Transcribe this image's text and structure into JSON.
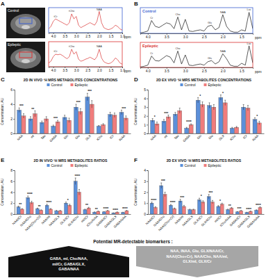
{
  "figure": {
    "panel_labels": [
      "A",
      "B",
      "C",
      "D",
      "E",
      "F"
    ],
    "mri_labels": [
      "Control",
      "Epileptic"
    ],
    "biomarkers": {
      "title": "Potential MR-detectable biomarkers :",
      "increased": [
        "GABA, mI, Cho/NAA,",
        "mI/Cr, GABA/GLX,",
        "GABA/NAA"
      ],
      "decreased": [
        "NAA, INAA, Glu, GLX/NAA/Cr,",
        "NAA/(Cho+Cr), NAA/Cho, NAA/mI,",
        "GLX/mI, GLX/Cr"
      ]
    }
  },
  "chart_data": [
    {
      "type": "line",
      "tick_labels": "x",
      "x_label": "ppm",
      "xlim": [
        4.2,
        1.0
      ],
      "ylim": [
        0,
        1
      ],
      "xticks": [
        {
          "value": 4,
          "label": "4.0"
        },
        3.5,
        {
          "value": 3,
          "label": "3.0"
        },
        2.5,
        {
          "value": 2,
          "label": "2.0"
        },
        1.5,
        {
          "value": 1,
          "label": "1.0"
        }
      ],
      "x": [
        4.2,
        4.1,
        4.0,
        3.9,
        3.8,
        3.7,
        3.6,
        3.5,
        3.4,
        3.3,
        3.2,
        3.1,
        3.0,
        2.9,
        2.8,
        2.7,
        2.6,
        2.5,
        2.4,
        2.3,
        2.2,
        2.1,
        2.0,
        1.9,
        1.8,
        1.7,
        1.6,
        1.5,
        1.4,
        1.3,
        1.2,
        1.1,
        1.0
      ],
      "series": [
        {
          "name": "Control",
          "color": "#d93030",
          "values": [
            0.15,
            0.25,
            0.45,
            0.55,
            0.5,
            0.45,
            0.4,
            0.35,
            0.3,
            0.4,
            0.75,
            0.55,
            0.65,
            0.3,
            0.2,
            0.25,
            0.3,
            0.35,
            0.4,
            0.35,
            0.3,
            0.45,
            0.85,
            0.4,
            0.2,
            0.15,
            0.12,
            0.15,
            0.2,
            0.3,
            0.25,
            0.15,
            0.1
          ]
        }
      ],
      "annotations": [
        {
          "text": "tCr",
          "x": 3.9,
          "y": 0.62
        },
        {
          "text": "tCho",
          "x": 3.2,
          "y": 0.82
        },
        {
          "text": "NAA",
          "x": 2.0,
          "y": 0.9
        }
      ]
    },
    {
      "type": "line",
      "tick_labels": "x",
      "x_label": "ppm",
      "xlim": [
        4.2,
        1.0
      ],
      "ylim": [
        0,
        1
      ],
      "xticks": [
        {
          "value": 4,
          "label": "4.0"
        },
        3.5,
        {
          "value": 3,
          "label": "3.0"
        },
        2.5,
        {
          "value": 2,
          "label": "2.0"
        },
        1.5,
        {
          "value": 1,
          "label": "1.0"
        }
      ],
      "x": [
        4.2,
        4.1,
        4.0,
        3.9,
        3.8,
        3.7,
        3.6,
        3.5,
        3.4,
        3.3,
        3.2,
        3.1,
        3.0,
        2.9,
        2.8,
        2.7,
        2.6,
        2.5,
        2.4,
        2.3,
        2.2,
        2.1,
        2.0,
        1.9,
        1.8,
        1.7,
        1.6,
        1.5,
        1.4,
        1.3,
        1.2,
        1.1,
        1.0
      ],
      "series": [
        {
          "name": "Epileptic",
          "color": "#d93030",
          "values": [
            0.15,
            0.22,
            0.4,
            0.5,
            0.48,
            0.5,
            0.45,
            0.38,
            0.32,
            0.4,
            0.7,
            0.5,
            0.6,
            0.3,
            0.22,
            0.25,
            0.3,
            0.33,
            0.38,
            0.33,
            0.28,
            0.4,
            0.7,
            0.35,
            0.2,
            0.15,
            0.12,
            0.15,
            0.22,
            0.35,
            0.28,
            0.15,
            0.1
          ]
        }
      ],
      "annotations": [
        {
          "text": "tCr",
          "x": 3.9,
          "y": 0.57
        },
        {
          "text": "tCho",
          "x": 3.2,
          "y": 0.77
        },
        {
          "text": "NAA",
          "x": 2.0,
          "y": 0.78
        }
      ]
    },
    {
      "type": "line",
      "title": "Control",
      "tick_labels": "x",
      "x_label": "ppm",
      "xlim": [
        4.2,
        1.2
      ],
      "ylim": [
        0,
        1.1
      ],
      "xticks": [
        {
          "value": 4,
          "label": "4.0"
        },
        3.5,
        {
          "value": 3,
          "label": "3.0"
        },
        2.5,
        {
          "value": 2,
          "label": "2.0"
        },
        1.5
      ],
      "x": [
        4.2,
        4.1,
        4.0,
        3.9,
        3.8,
        3.7,
        3.6,
        3.5,
        3.4,
        3.3,
        3.2,
        3.1,
        3.0,
        2.9,
        2.8,
        2.7,
        2.6,
        2.5,
        2.4,
        2.3,
        2.2,
        2.1,
        2.0,
        1.9,
        1.8,
        1.7,
        1.6,
        1.5,
        1.4,
        1.3,
        1.2
      ],
      "series": [
        {
          "name": "Control",
          "color": "#111111",
          "values": [
            0.02,
            0.05,
            0.1,
            0.55,
            0.3,
            0.25,
            0.35,
            0.45,
            0.4,
            0.2,
            0.7,
            0.15,
            0.6,
            0.1,
            0.08,
            0.12,
            0.15,
            0.1,
            0.3,
            0.35,
            0.15,
            0.25,
            0.8,
            0.3,
            0.1,
            0.05,
            0.05,
            0.15,
            0.1,
            0.9,
            0.2
          ]
        }
      ],
      "annotations": [
        {
          "text": "Cr",
          "x": 3.9,
          "y": 0.62
        },
        {
          "text": "Cho",
          "x": 3.2,
          "y": 0.77
        },
        {
          "text": "Glu",
          "x": 2.35,
          "y": 0.42
        },
        {
          "text": "NAA",
          "x": 2.0,
          "y": 0.87
        },
        {
          "text": "Lac",
          "x": 1.3,
          "y": 0.97
        }
      ]
    },
    {
      "type": "line",
      "title": "Epileptic",
      "tick_labels": "x",
      "x_label": "ppm",
      "xlim": [
        4.2,
        1.2
      ],
      "ylim": [
        0,
        1.1
      ],
      "xticks": [
        {
          "value": 4,
          "label": "4.0"
        },
        3.5,
        {
          "value": 3,
          "label": "3.0"
        },
        2.5,
        {
          "value": 2,
          "label": "2.0"
        },
        1.5
      ],
      "x": [
        4.2,
        4.1,
        4.0,
        3.9,
        3.8,
        3.7,
        3.6,
        3.5,
        3.4,
        3.3,
        3.2,
        3.1,
        3.0,
        2.9,
        2.8,
        2.7,
        2.6,
        2.5,
        2.4,
        2.3,
        2.2,
        2.1,
        2.0,
        1.9,
        1.8,
        1.7,
        1.6,
        1.5,
        1.4,
        1.3,
        1.2
      ],
      "series": [
        {
          "name": "Epileptic",
          "color": "#111111",
          "values": [
            0.02,
            0.05,
            0.1,
            0.5,
            0.3,
            0.28,
            0.4,
            0.52,
            0.45,
            0.2,
            0.72,
            0.15,
            0.55,
            0.1,
            0.08,
            0.12,
            0.15,
            0.1,
            0.25,
            0.3,
            0.15,
            0.25,
            0.6,
            0.38,
            0.1,
            0.05,
            0.05,
            0.18,
            0.1,
            0.95,
            0.2
          ]
        }
      ],
      "annotations": [
        {
          "text": "Cr",
          "x": 3.9,
          "y": 0.57
        },
        {
          "text": "Cho",
          "x": 3.2,
          "y": 0.79
        },
        {
          "text": "Glu",
          "x": 2.35,
          "y": 0.37
        },
        {
          "text": "NAA",
          "x": 2.0,
          "y": 0.67
        },
        {
          "text": "Lac",
          "x": 1.3,
          "y": 1.02
        }
      ]
    },
    {
      "type": "bar",
      "title": "2D IN VIVO ¹H MRS METABOLITES CONCENTRATIONS",
      "legend": "top",
      "y_label": "Concentration, AU",
      "categories": [
        "NAA",
        "mI",
        "Tau",
        "GABA",
        "Gln",
        "Glu",
        "GLX",
        "tCho",
        "tCr",
        "INAA"
      ],
      "ylim": [
        0,
        6
      ],
      "yticks": [
        0,
        2,
        4,
        6
      ],
      "series": [
        {
          "name": "Control",
          "color": "#5b8fd9",
          "values": [
            3.2,
            2.0,
            1.5,
            1.0,
            2.2,
            3.6,
            5.0,
            1.0,
            2.6,
            2.9
          ],
          "error": [
            0.3,
            0.3,
            0.2,
            0.15,
            0.3,
            0.4,
            0.5,
            0.1,
            0.3,
            0.3
          ]
        },
        {
          "name": "Epileptic",
          "color": "#f07c7c",
          "values": [
            2.4,
            2.7,
            2.0,
            1.6,
            1.8,
            3.0,
            4.0,
            1.2,
            2.5,
            2.1
          ],
          "error": [
            0.3,
            0.4,
            0.3,
            0.2,
            0.3,
            0.4,
            0.5,
            0.15,
            0.3,
            0.3
          ]
        }
      ],
      "significance": [
        "***",
        "**",
        null,
        "***",
        null,
        "***",
        "***",
        null,
        null,
        "***"
      ]
    },
    {
      "type": "bar",
      "title": "2D EX VIVO ¹H MRS METABOLITES CONCENTRATIONS",
      "legend": "top",
      "y_label": "Concentration, AU",
      "categories": [
        "NAA",
        "mI",
        "Tau",
        "GABA",
        "Gln",
        "Glu",
        "GLX",
        "tCho",
        "tCr",
        "INAA"
      ],
      "ylim": [
        0,
        5
      ],
      "yticks": [
        0,
        1,
        2,
        3,
        4,
        5
      ],
      "series": [
        {
          "name": "Control",
          "color": "#5b8fd9",
          "values": [
            1.5,
            1.4,
            2.2,
            0.6,
            3.8,
            3.2,
            4.1,
            0.6,
            3.0,
            1.6
          ],
          "error": [
            0.2,
            0.2,
            0.2,
            0.1,
            0.3,
            0.3,
            0.3,
            0.1,
            0.3,
            0.2
          ]
        },
        {
          "name": "Epileptic",
          "color": "#f07c7c",
          "values": [
            1.1,
            1.9,
            2.6,
            1.0,
            3.3,
            3.0,
            3.5,
            0.7,
            2.9,
            1.2
          ],
          "error": [
            0.2,
            0.2,
            0.3,
            0.1,
            0.3,
            0.3,
            0.3,
            0.1,
            0.3,
            0.2
          ]
        }
      ],
      "significance": [
        "*",
        "***",
        null,
        "****",
        "*",
        null,
        "*",
        null,
        null,
        "*"
      ]
    },
    {
      "type": "bar",
      "title": "2D IN VIVO ¹H MRS METABOLITES RATIOS",
      "legend": "top",
      "y_label": "Concentration, AU",
      "categories": [
        "NAA/tCr",
        "NAA/tCho",
        "NAA/(Cho+Cr)",
        "NAA/mI",
        "NAA/GLX",
        "GLX/tCr",
        "GLX/tCho",
        "mI/tCr",
        "tCho/NAA",
        "GABA/tCr",
        "GABA/GLX",
        "GABA/NAA"
      ],
      "ylim": [
        0,
        8
      ],
      "yticks": [
        0,
        2,
        4,
        6,
        8
      ],
      "series": [
        {
          "name": "Control",
          "color": "#5b8fd9",
          "values": [
            1.3,
            3.0,
            1.0,
            1.6,
            0.6,
            2.0,
            6.0,
            0.8,
            0.35,
            0.4,
            0.2,
            0.3
          ],
          "error": [
            0.15,
            0.3,
            0.1,
            0.2,
            0.08,
            0.2,
            0.6,
            0.1,
            0.05,
            0.05,
            0.03,
            0.04
          ]
        },
        {
          "name": "Epileptic",
          "color": "#f07c7c",
          "values": [
            0.9,
            2.1,
            0.7,
            0.9,
            0.6,
            1.6,
            4.0,
            1.1,
            0.5,
            0.6,
            0.35,
            0.6
          ],
          "error": [
            0.1,
            0.25,
            0.08,
            0.12,
            0.08,
            0.2,
            0.5,
            0.15,
            0.06,
            0.08,
            0.05,
            0.08
          ]
        }
      ],
      "significance": [
        "**",
        "****",
        "**",
        "****",
        null,
        "*",
        "****",
        "**",
        "**",
        "****",
        "****",
        "****"
      ]
    },
    {
      "type": "bar",
      "title": "2D EX VIVO ¹H MRS METABOLITES RATIOS",
      "legend": "top",
      "y_label": "Concentration, AU",
      "categories": [
        "NAA/tCr",
        "NAA/tCho",
        "NAA/(Cho+Cr)",
        "NAA/mI",
        "NAA/GLX",
        "GLX/tCr",
        "GLX/tCho",
        "mI/tCr",
        "tCho/NAA",
        "GABA/tCr",
        "GABA/GLX",
        "GABA/NAA"
      ],
      "ylim": [
        0,
        4
      ],
      "yticks": [
        0,
        1,
        2,
        3,
        4
      ],
      "series": [
        {
          "name": "Control",
          "color": "#5b8fd9",
          "values": [
            1.0,
            2.6,
            0.8,
            1.2,
            0.4,
            1.3,
            1.6,
            0.7,
            0.4,
            0.2,
            0.15,
            0.35
          ],
          "error": [
            0.1,
            0.25,
            0.08,
            0.15,
            0.05,
            0.15,
            0.2,
            0.08,
            0.05,
            0.03,
            0.02,
            0.04
          ]
        },
        {
          "name": "Epileptic",
          "color": "#f07c7c",
          "values": [
            0.6,
            1.8,
            0.5,
            0.7,
            0.4,
            1.1,
            1.1,
            0.9,
            0.55,
            0.3,
            0.25,
            0.6
          ],
          "error": [
            0.08,
            0.2,
            0.06,
            0.1,
            0.05,
            0.12,
            0.15,
            0.1,
            0.06,
            0.04,
            0.03,
            0.07
          ]
        }
      ],
      "significance": [
        "****",
        "***",
        "****",
        "***",
        null,
        "*",
        "***",
        "*",
        "**",
        "***",
        "****",
        "****"
      ]
    }
  ]
}
